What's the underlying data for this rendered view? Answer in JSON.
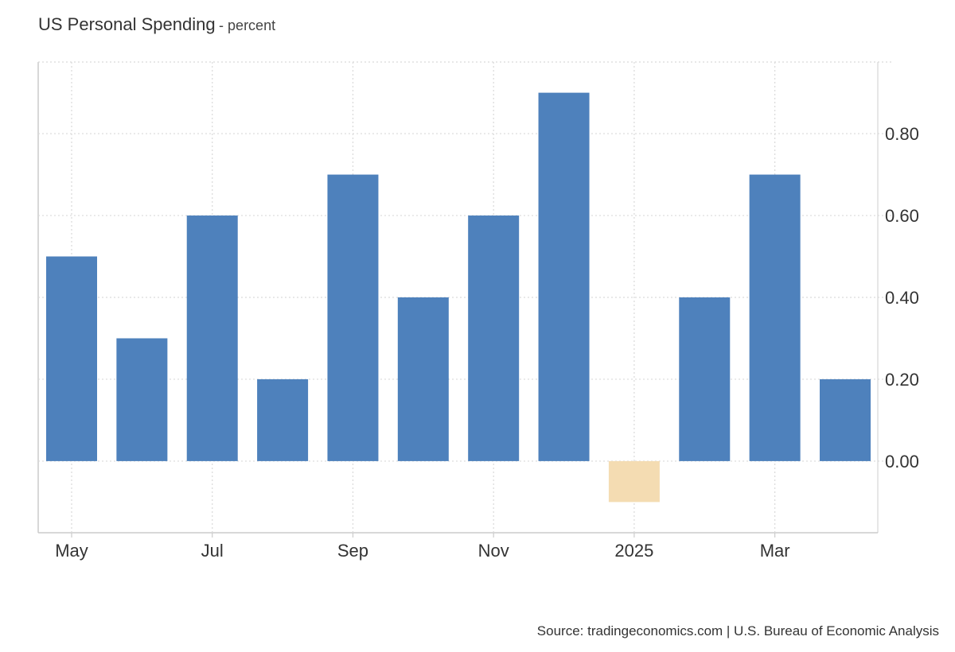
{
  "title": "US Personal Spending",
  "subtitle": "- percent",
  "source": "Source: tradingeconomics.com | U.S. Bureau of Economic Analysis",
  "colors": {
    "positive": "#4e81bc",
    "negative": "#f4dcb2",
    "grid": "#d9d9d9",
    "axis": "#cccccc"
  },
  "chart_data": {
    "type": "bar",
    "title": "US Personal Spending",
    "subtitle": "- percent",
    "categories": [
      "2024-05",
      "2024-06",
      "2024-07",
      "2024-08",
      "2024-09",
      "2024-10",
      "2024-11",
      "2024-12",
      "2025-01",
      "2025-02",
      "2025-03",
      "2025-04"
    ],
    "values": [
      0.5,
      0.3,
      0.6,
      0.2,
      0.7,
      0.4,
      0.6,
      0.9,
      -0.1,
      0.4,
      0.7,
      0.2
    ],
    "x_tick_labels": [
      {
        "category": "2024-05",
        "label": "May"
      },
      {
        "category": "2024-07",
        "label": "Jul"
      },
      {
        "category": "2024-09",
        "label": "Sep"
      },
      {
        "category": "2024-11",
        "label": "Nov"
      },
      {
        "category": "2025-01",
        "label": "2025"
      },
      {
        "category": "2025-03",
        "label": "Mar"
      }
    ],
    "y_ticks": [
      {
        "value": 0.0,
        "label": "0.00"
      },
      {
        "value": 0.2,
        "label": "0.20"
      },
      {
        "value": 0.4,
        "label": "0.40"
      },
      {
        "value": 0.6,
        "label": "0.60"
      },
      {
        "value": 0.8,
        "label": "0.80"
      }
    ],
    "ylim": [
      -0.175,
      0.975
    ],
    "y_axis_side": "right",
    "grid": true,
    "legend": "none"
  }
}
